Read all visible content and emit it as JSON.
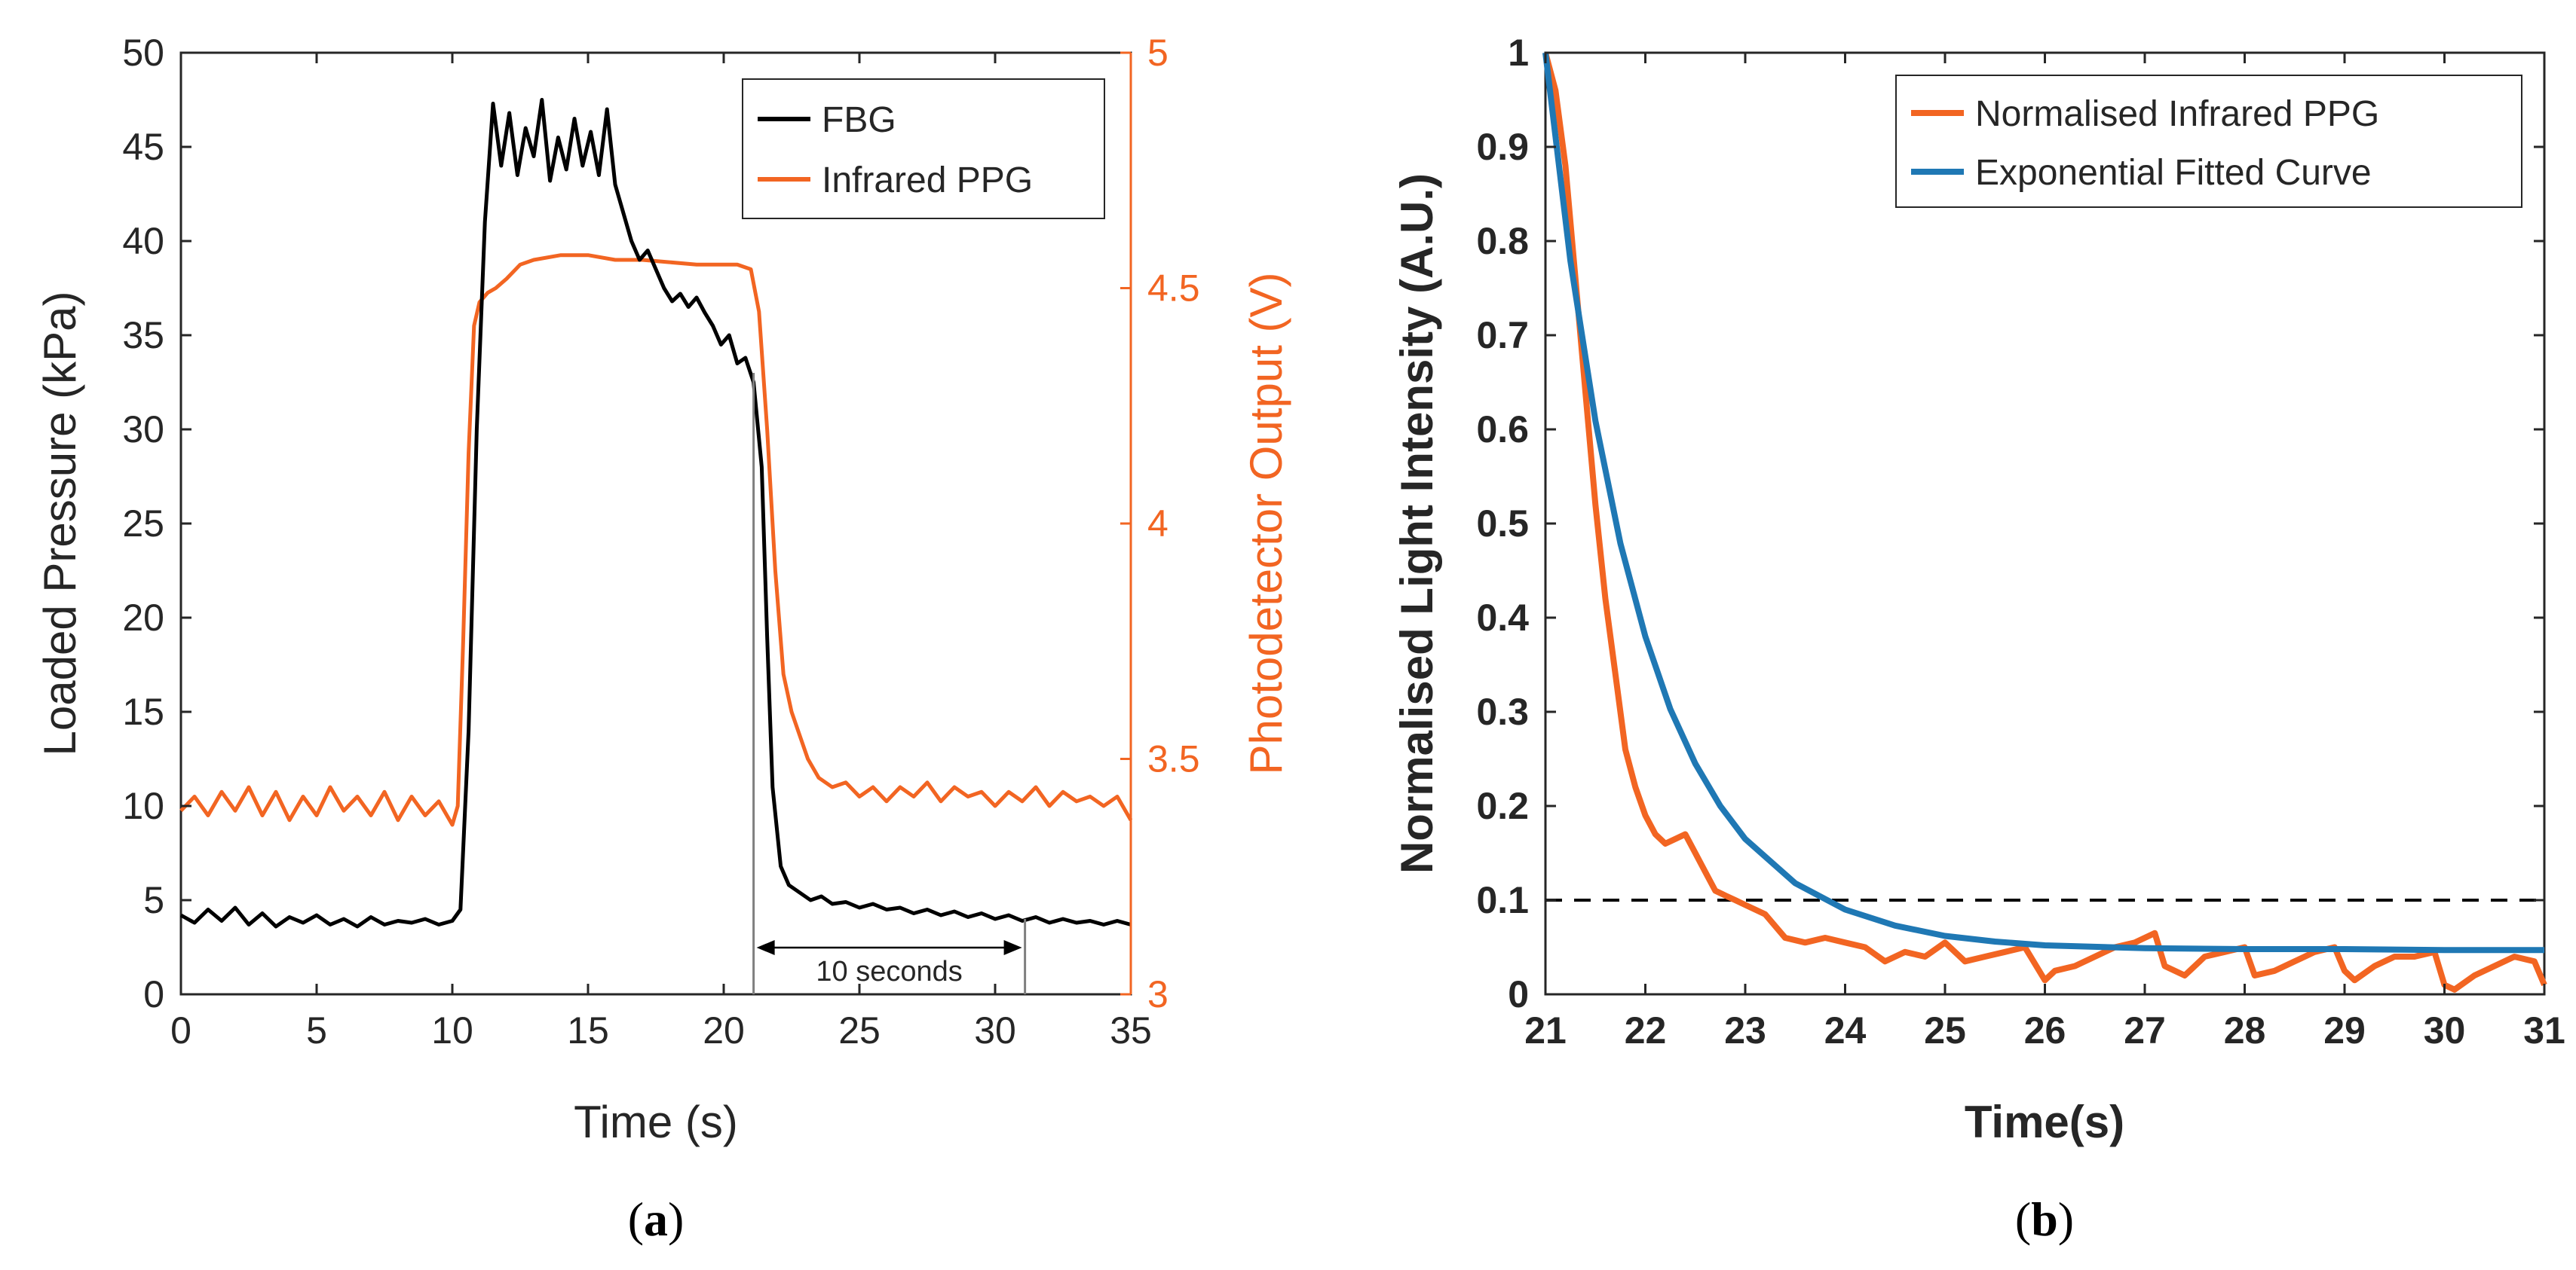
{
  "chart_data": [
    {
      "type": "line",
      "panel_label": "a",
      "xlabel": "Time (s)",
      "ylabel_left": "Loaded Pressure (kPa)",
      "ylabel_right": "Photodetector Output (V)",
      "xlim": [
        0,
        35
      ],
      "ylim_left": [
        0,
        50
      ],
      "ylim_right": [
        3,
        5
      ],
      "x_ticks": [
        "0",
        "5",
        "10",
        "15",
        "20",
        "25",
        "30",
        "35"
      ],
      "y_left_ticks": [
        "0",
        "5",
        "10",
        "15",
        "20",
        "25",
        "30",
        "35",
        "40",
        "45",
        "50"
      ],
      "y_right_ticks": [
        "3",
        "3.5",
        "4",
        "4.5",
        "5"
      ],
      "grid": false,
      "legend_position": "top-right",
      "annotation": {
        "text": "10 seconds",
        "x_start": 21.1,
        "x_end": 31.1
      },
      "series": [
        {
          "name": "FBG",
          "axis": "left",
          "color": "#000000",
          "x": [
            0,
            0.5,
            1,
            1.5,
            2,
            2.5,
            3,
            3.5,
            4,
            4.5,
            5,
            5.5,
            6,
            6.5,
            7,
            7.5,
            8,
            8.5,
            9,
            9.5,
            10,
            10.3,
            10.6,
            10.9,
            11.2,
            11.5,
            11.8,
            12.1,
            12.4,
            12.7,
            13,
            13.3,
            13.6,
            13.9,
            14.2,
            14.5,
            14.8,
            15.1,
            15.4,
            15.7,
            16,
            16.3,
            16.6,
            16.9,
            17.2,
            17.5,
            17.8,
            18.1,
            18.4,
            18.7,
            19,
            19.3,
            19.6,
            19.9,
            20.2,
            20.5,
            20.8,
            21.1,
            21.4,
            21.6,
            21.8,
            22.1,
            22.4,
            22.8,
            23.2,
            23.6,
            24,
            24.5,
            25,
            25.5,
            26,
            26.5,
            27,
            27.5,
            28,
            28.5,
            29,
            29.5,
            30,
            30.5,
            31,
            31.5,
            32,
            32.5,
            33,
            33.5,
            34,
            34.5,
            35
          ],
          "values": [
            4.2,
            3.8,
            4.5,
            3.9,
            4.6,
            3.7,
            4.3,
            3.6,
            4.1,
            3.8,
            4.2,
            3.7,
            4.0,
            3.6,
            4.1,
            3.7,
            3.9,
            3.8,
            4.0,
            3.7,
            3.9,
            4.5,
            14,
            30,
            41,
            47.3,
            44,
            46.8,
            43.5,
            46,
            44.5,
            47.5,
            43.2,
            45.5,
            43.8,
            46.5,
            44,
            45.8,
            43.5,
            47,
            43,
            41.5,
            40,
            39,
            39.5,
            38.5,
            37.5,
            36.8,
            37.2,
            36.5,
            37,
            36.2,
            35.5,
            34.5,
            35,
            33.5,
            33.8,
            32.5,
            28,
            19,
            11,
            6.8,
            5.8,
            5.4,
            5.0,
            5.2,
            4.8,
            4.9,
            4.6,
            4.8,
            4.5,
            4.6,
            4.3,
            4.5,
            4.2,
            4.4,
            4.1,
            4.3,
            4.0,
            4.2,
            3.9,
            4.1,
            3.8,
            4.0,
            3.8,
            3.9,
            3.7,
            3.9,
            3.7
          ]
        },
        {
          "name": "Infrared PPG",
          "axis": "right",
          "color": "#f26522",
          "x": [
            0,
            0.5,
            1,
            1.5,
            2,
            2.5,
            3,
            3.5,
            4,
            4.5,
            5,
            5.5,
            6,
            6.5,
            7,
            7.5,
            8,
            8.5,
            9,
            9.5,
            10,
            10.2,
            10.4,
            10.6,
            10.8,
            11,
            11.3,
            11.6,
            12,
            12.5,
            13,
            14,
            15,
            16,
            17,
            18,
            19,
            20,
            20.5,
            21,
            21.3,
            21.6,
            21.9,
            22.2,
            22.5,
            22.8,
            23.1,
            23.5,
            24,
            24.5,
            25,
            25.5,
            26,
            26.5,
            27,
            27.5,
            28,
            28.5,
            29,
            29.5,
            30,
            30.5,
            31,
            31.5,
            32,
            32.5,
            33,
            33.5,
            34,
            34.5,
            35
          ],
          "values": [
            3.39,
            3.42,
            3.38,
            3.43,
            3.39,
            3.44,
            3.38,
            3.43,
            3.37,
            3.42,
            3.38,
            3.44,
            3.39,
            3.42,
            3.38,
            3.43,
            3.37,
            3.42,
            3.38,
            3.41,
            3.36,
            3.4,
            3.75,
            4.15,
            4.42,
            4.47,
            4.49,
            4.5,
            4.52,
            4.55,
            4.56,
            4.57,
            4.57,
            4.56,
            4.56,
            4.555,
            4.55,
            4.55,
            4.55,
            4.54,
            4.45,
            4.2,
            3.9,
            3.68,
            3.6,
            3.55,
            3.5,
            3.46,
            3.44,
            3.45,
            3.42,
            3.44,
            3.41,
            3.44,
            3.42,
            3.45,
            3.41,
            3.44,
            3.42,
            3.43,
            3.4,
            3.43,
            3.41,
            3.44,
            3.4,
            3.43,
            3.41,
            3.42,
            3.4,
            3.42,
            3.37
          ]
        }
      ]
    },
    {
      "type": "line",
      "panel_label": "b",
      "xlabel": "Time(s)",
      "ylabel": "Normalised Light Intensity (A.U.)",
      "xlim": [
        21,
        31
      ],
      "ylim": [
        0,
        1
      ],
      "x_ticks": [
        "21",
        "22",
        "23",
        "24",
        "25",
        "26",
        "27",
        "28",
        "29",
        "30",
        "31"
      ],
      "y_ticks": [
        "0",
        "0.1",
        "0.2",
        "0.3",
        "0.4",
        "0.5",
        "0.6",
        "0.7",
        "0.8",
        "0.9",
        "1"
      ],
      "grid": false,
      "legend_position": "top-right",
      "threshold_line": {
        "y": 0.1,
        "style": "dashed"
      },
      "series": [
        {
          "name": "Normalised Infrared PPG",
          "color": "#f26522",
          "x": [
            21,
            21.1,
            21.2,
            21.3,
            21.4,
            21.5,
            21.6,
            21.7,
            21.8,
            21.9,
            22,
            22.1,
            22.2,
            22.3,
            22.4,
            22.5,
            22.6,
            22.7,
            22.8,
            22.9,
            23,
            23.2,
            23.4,
            23.6,
            23.8,
            24,
            24.2,
            24.4,
            24.6,
            24.8,
            25,
            25.2,
            25.4,
            25.6,
            25.8,
            26,
            26.1,
            26.3,
            26.5,
            26.7,
            26.9,
            27.1,
            27.2,
            27.4,
            27.6,
            27.8,
            28,
            28.1,
            28.3,
            28.5,
            28.7,
            28.9,
            29,
            29.1,
            29.3,
            29.5,
            29.7,
            29.9,
            30,
            30.1,
            30.3,
            30.5,
            30.7,
            30.9,
            31
          ],
          "values": [
            1.0,
            0.96,
            0.88,
            0.76,
            0.64,
            0.52,
            0.42,
            0.34,
            0.26,
            0.22,
            0.19,
            0.17,
            0.16,
            0.165,
            0.17,
            0.15,
            0.13,
            0.11,
            0.105,
            0.1,
            0.095,
            0.085,
            0.06,
            0.055,
            0.06,
            0.055,
            0.05,
            0.035,
            0.045,
            0.04,
            0.055,
            0.035,
            0.04,
            0.045,
            0.05,
            0.015,
            0.025,
            0.03,
            0.04,
            0.05,
            0.055,
            0.065,
            0.03,
            0.02,
            0.04,
            0.045,
            0.05,
            0.02,
            0.025,
            0.035,
            0.045,
            0.05,
            0.025,
            0.015,
            0.03,
            0.04,
            0.04,
            0.045,
            0.01,
            0.005,
            0.02,
            0.03,
            0.04,
            0.035,
            0.01
          ]
        },
        {
          "name": "Exponential Fitted Curve",
          "color": "#1f78b4",
          "x": [
            21,
            21.25,
            21.5,
            21.75,
            22,
            22.25,
            22.5,
            22.75,
            23,
            23.5,
            24,
            24.5,
            25,
            25.5,
            26,
            27,
            28,
            29,
            30,
            31
          ],
          "values": [
            1.0,
            0.779,
            0.609,
            0.479,
            0.38,
            0.303,
            0.245,
            0.2,
            0.165,
            0.118,
            0.09,
            0.073,
            0.062,
            0.056,
            0.052,
            0.049,
            0.048,
            0.048,
            0.047,
            0.047
          ]
        }
      ]
    }
  ],
  "figure": {
    "panel_a_label": "a",
    "panel_b_label": "b"
  }
}
